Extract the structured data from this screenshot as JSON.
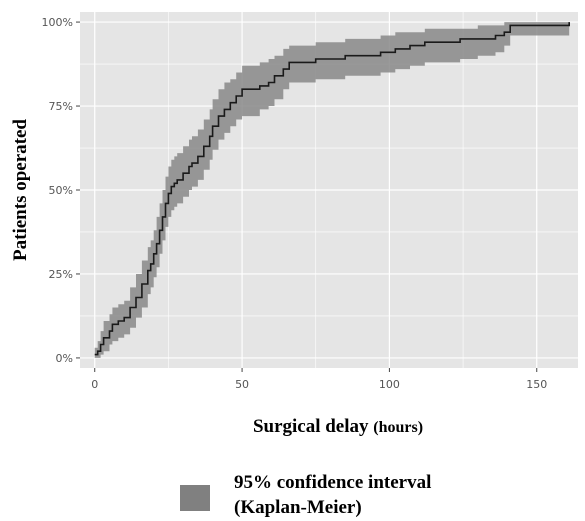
{
  "chart_data": {
    "type": "line",
    "xlabel": "Surgical delay",
    "xlabel_unit": "(hours)",
    "ylabel": "Patients operated",
    "xlim": [
      -5,
      164
    ],
    "ylim": [
      -0.03,
      1.03
    ],
    "x_ticks": [
      0,
      50,
      100,
      150
    ],
    "x_tick_labels": [
      "0",
      "50",
      "100",
      "150"
    ],
    "y_ticks": [
      0,
      0.25,
      0.5,
      0.75,
      1.0
    ],
    "y_tick_labels": [
      "0%",
      "25%",
      "50%",
      "75%",
      "100%"
    ],
    "grid": true,
    "legend": {
      "placement": "bottom",
      "line1": "95% confidence interval",
      "line2": "(Kaplan-Meier)",
      "swatch_color": "#808080"
    },
    "colors": {
      "panel": "#e5e5e5",
      "grid": "#ffffff",
      "line": "#1a1a1a",
      "band": "#888888"
    },
    "series": [
      {
        "x": [
          0,
          1,
          2,
          3,
          5,
          6,
          8,
          10,
          12,
          14,
          16,
          18,
          19,
          20,
          21,
          22,
          23,
          24,
          25,
          26,
          27,
          28,
          30,
          32,
          33,
          35,
          37,
          39,
          40,
          42,
          44,
          46,
          48,
          50,
          53,
          56,
          59,
          61,
          64,
          66,
          68,
          72,
          75,
          80,
          85,
          92,
          97,
          102,
          107,
          112,
          118,
          124,
          130,
          136,
          139,
          141,
          151,
          158,
          161
        ],
        "y": [
          0.01,
          0.02,
          0.04,
          0.06,
          0.08,
          0.1,
          0.11,
          0.12,
          0.15,
          0.18,
          0.22,
          0.26,
          0.28,
          0.31,
          0.34,
          0.38,
          0.42,
          0.46,
          0.49,
          0.51,
          0.52,
          0.53,
          0.55,
          0.57,
          0.58,
          0.6,
          0.63,
          0.66,
          0.69,
          0.72,
          0.74,
          0.76,
          0.78,
          0.8,
          0.8,
          0.81,
          0.82,
          0.84,
          0.86,
          0.88,
          0.88,
          0.88,
          0.89,
          0.89,
          0.9,
          0.9,
          0.91,
          0.92,
          0.93,
          0.94,
          0.94,
          0.95,
          0.95,
          0.96,
          0.97,
          0.99,
          0.99,
          0.99,
          1.0
        ],
        "lower": [
          0.0,
          0.0,
          0.01,
          0.02,
          0.04,
          0.05,
          0.06,
          0.07,
          0.09,
          0.12,
          0.15,
          0.19,
          0.21,
          0.24,
          0.27,
          0.31,
          0.35,
          0.39,
          0.42,
          0.44,
          0.45,
          0.46,
          0.48,
          0.5,
          0.51,
          0.53,
          0.56,
          0.59,
          0.62,
          0.65,
          0.67,
          0.69,
          0.71,
          0.72,
          0.72,
          0.74,
          0.75,
          0.77,
          0.8,
          0.82,
          0.82,
          0.82,
          0.83,
          0.83,
          0.84,
          0.84,
          0.85,
          0.86,
          0.87,
          0.88,
          0.88,
          0.89,
          0.9,
          0.91,
          0.93,
          0.96,
          0.96,
          0.96,
          0.98
        ],
        "upper": [
          0.03,
          0.05,
          0.08,
          0.11,
          0.13,
          0.15,
          0.16,
          0.17,
          0.21,
          0.25,
          0.29,
          0.33,
          0.35,
          0.38,
          0.42,
          0.46,
          0.5,
          0.54,
          0.57,
          0.59,
          0.6,
          0.61,
          0.63,
          0.65,
          0.66,
          0.68,
          0.71,
          0.74,
          0.77,
          0.8,
          0.82,
          0.83,
          0.85,
          0.87,
          0.87,
          0.88,
          0.89,
          0.9,
          0.92,
          0.93,
          0.93,
          0.93,
          0.94,
          0.94,
          0.95,
          0.95,
          0.96,
          0.97,
          0.97,
          0.98,
          0.98,
          0.98,
          0.99,
          0.99,
          1.0,
          1.0,
          1.0,
          1.0,
          1.0
        ]
      }
    ]
  }
}
